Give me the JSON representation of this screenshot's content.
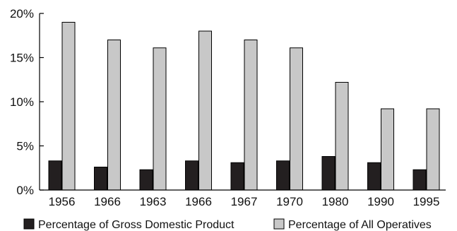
{
  "chart_data": {
    "type": "bar",
    "title": "",
    "xlabel": "",
    "ylabel": "",
    "categories": [
      "1956",
      "1966",
      "1963",
      "1966",
      "1967",
      "1970",
      "1980",
      "1990",
      "1995"
    ],
    "series": [
      {
        "name": "Percentage of Gross Domestic Product",
        "color": "#231f20",
        "values": [
          3.3,
          2.6,
          2.3,
          3.3,
          3.1,
          3.3,
          3.8,
          3.1,
          2.3
        ]
      },
      {
        "name": "Percentage of All Operatives",
        "color": "#c8c8c8",
        "values": [
          19.0,
          17.0,
          16.1,
          18.0,
          17.0,
          16.1,
          12.2,
          9.2,
          9.2
        ]
      }
    ],
    "ylim": [
      0,
      20
    ],
    "yticks": [
      0,
      5,
      10,
      15,
      20
    ],
    "ytick_labels": [
      "0%",
      "5%",
      "10%",
      "15%",
      "20%"
    ],
    "grid": false,
    "legend_position": "bottom"
  }
}
